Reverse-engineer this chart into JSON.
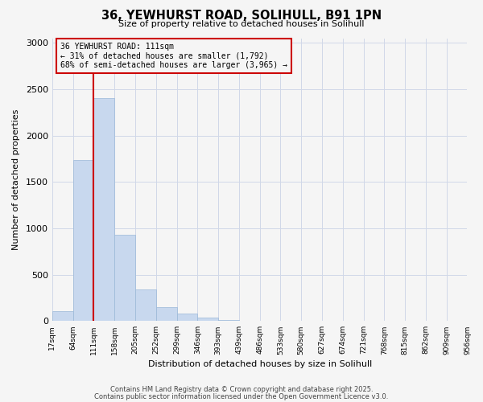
{
  "title_line1": "36, YEWHURST ROAD, SOLIHULL, B91 1PN",
  "title_line2": "Size of property relative to detached houses in Solihull",
  "xlabel": "Distribution of detached houses by size in Solihull",
  "ylabel": "Number of detached properties",
  "bar_values": [
    110,
    1740,
    2400,
    930,
    340,
    150,
    80,
    35,
    15,
    0,
    0,
    0,
    0,
    0,
    0,
    0,
    0,
    0,
    0,
    0
  ],
  "bin_labels": [
    "17sqm",
    "64sqm",
    "111sqm",
    "158sqm",
    "205sqm",
    "252sqm",
    "299sqm",
    "346sqm",
    "393sqm",
    "439sqm",
    "486sqm",
    "533sqm",
    "580sqm",
    "627sqm",
    "674sqm",
    "721sqm",
    "768sqm",
    "815sqm",
    "862sqm",
    "909sqm",
    "956sqm"
  ],
  "bar_color": "#c8d8ee",
  "bar_edge_color": "#9ab8d8",
  "vline_x": 2,
  "vline_color": "#cc0000",
  "annotation_line1": "36 YEWHURST ROAD: 111sqm",
  "annotation_line2": "← 31% of detached houses are smaller (1,792)",
  "annotation_line3": "68% of semi-detached houses are larger (3,965) →",
  "annotation_box_color": "#cc0000",
  "ylim": [
    0,
    3050
  ],
  "yticks": [
    0,
    500,
    1000,
    1500,
    2000,
    2500,
    3000
  ],
  "footer1": "Contains HM Land Registry data © Crown copyright and database right 2025.",
  "footer2": "Contains public sector information licensed under the Open Government Licence v3.0.",
  "background_color": "#f5f5f5",
  "grid_color": "#d0d8e8"
}
